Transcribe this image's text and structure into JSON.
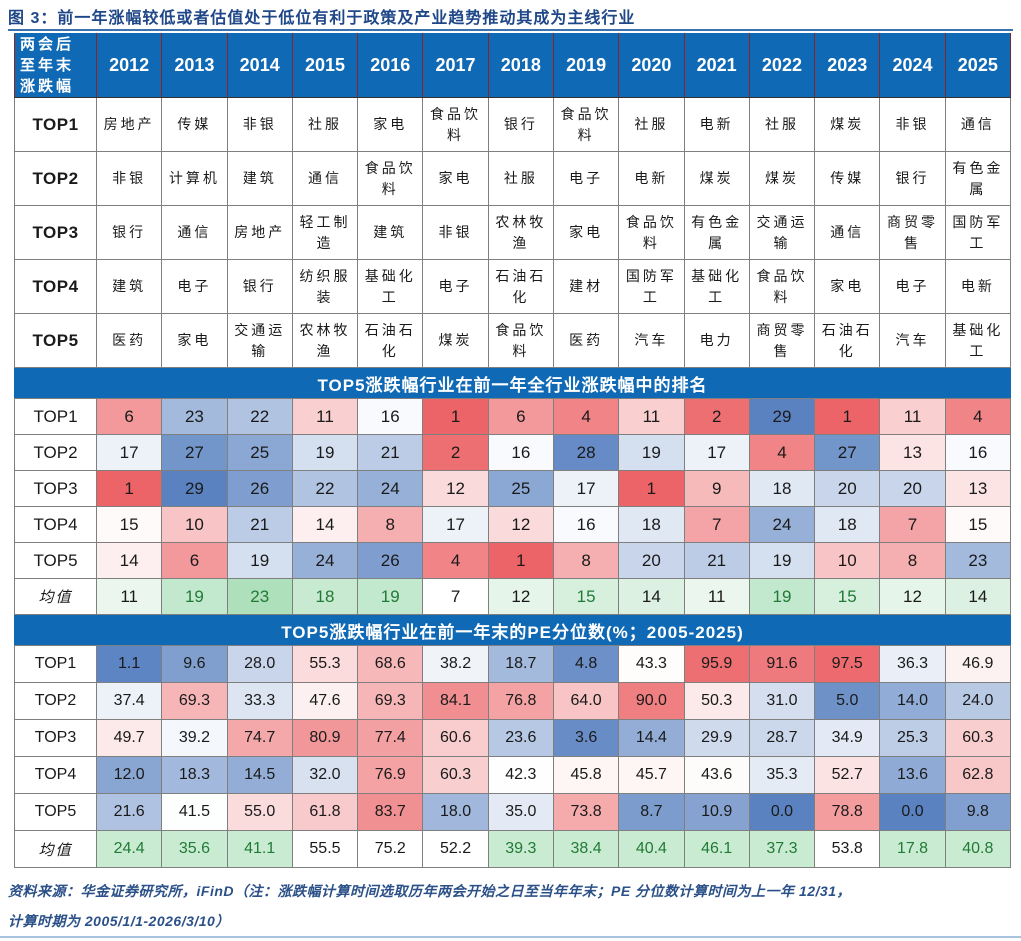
{
  "title": "图 3：前一年涨幅较低或者估值处于低位有利于政策及产业趋势推动其成为主线行业",
  "corner_label_lines": [
    "两会后",
    "至年末",
    "涨跌幅"
  ],
  "years": [
    "2012",
    "2013",
    "2014",
    "2015",
    "2016",
    "2017",
    "2018",
    "2019",
    "2020",
    "2021",
    "2022",
    "2023",
    "2024",
    "2025"
  ],
  "footer": {
    "line1": "资料来源：华金证券研究所，iFinD（注：涨跌幅计算时间选取历年两会开始之日至当年年末；PE 分位数计算时间为上一年 12/31，",
    "line2": "计算时期为 2005/1/1-2026/3/10）"
  },
  "colors": {
    "header_blue": "#0f69b4",
    "title_navy": "#1f4788",
    "footer_navy": "#2b5188",
    "hot_red": "#ec6467",
    "cool_blue": "#5a82c1",
    "mean_green_bg": "#aee0bc",
    "mean_green_bg_pe": "#c9ebd2",
    "mean_green_text": "#217a36",
    "header_grid_red": "#8b2525",
    "body_grid_gray": "#7f7f7f"
  },
  "chart_data": [
    {
      "type": "table",
      "name": "top5-industries-by-year",
      "title": "两会后至年末涨跌幅 TOP1-TOP5 行业",
      "columns": [
        "2012",
        "2013",
        "2014",
        "2015",
        "2016",
        "2017",
        "2018",
        "2019",
        "2020",
        "2021",
        "2022",
        "2023",
        "2024",
        "2025"
      ],
      "rows": [
        {
          "label": "TOP1",
          "cells": [
            "房地产",
            "传媒",
            "非银",
            "社服",
            "家电",
            "食品饮料",
            "银行",
            "食品饮料",
            "社服",
            "电新",
            "社服",
            "煤炭",
            "非银",
            "通信"
          ]
        },
        {
          "label": "TOP2",
          "cells": [
            "非银",
            "计算机",
            "建筑",
            "通信",
            "食品饮料",
            "家电",
            "社服",
            "电子",
            "电新",
            "煤炭",
            "煤炭",
            "传媒",
            "银行",
            "有色金属"
          ]
        },
        {
          "label": "TOP3",
          "cells": [
            "银行",
            "通信",
            "房地产",
            "轻工制造",
            "建筑",
            "非银",
            "农林牧渔",
            "家电",
            "食品饮料",
            "有色金属",
            "交通运输",
            "通信",
            "商贸零售",
            "国防军工"
          ]
        },
        {
          "label": "TOP4",
          "cells": [
            "建筑",
            "电子",
            "银行",
            "纺织服装",
            "基础化工",
            "电子",
            "石油石化",
            "建材",
            "国防军工",
            "基础化工",
            "食品饮料",
            "家电",
            "电子",
            "电新"
          ]
        },
        {
          "label": "TOP5",
          "cells": [
            "医药",
            "家电",
            "交通运输",
            "农林牧渔",
            "石油石化",
            "煤炭",
            "食品饮料",
            "医药",
            "汽车",
            "电力",
            "商贸零售",
            "石油石化",
            "汽车",
            "基础化工"
          ]
        }
      ]
    },
    {
      "type": "heatmap",
      "name": "rank-in-prior-year",
      "title": "TOP5涨跌幅行业在前一年全行业涨跌幅中的排名",
      "columns": [
        "2012",
        "2013",
        "2014",
        "2015",
        "2016",
        "2017",
        "2018",
        "2019",
        "2020",
        "2021",
        "2022",
        "2023",
        "2024",
        "2025"
      ],
      "color_scale": {
        "low": 1,
        "mid": 15.5,
        "high": 29,
        "low_color": "#ec6467",
        "mid_color": "#ffffff",
        "high_color": "#5a82c1"
      },
      "rows": [
        {
          "label": "TOP1",
          "values": [
            6,
            23,
            22,
            11,
            16,
            1,
            6,
            4,
            11,
            2,
            29,
            1,
            11,
            4
          ]
        },
        {
          "label": "TOP2",
          "values": [
            17,
            27,
            25,
            19,
            21,
            2,
            16,
            28,
            19,
            17,
            4,
            27,
            13,
            16
          ]
        },
        {
          "label": "TOP3",
          "values": [
            1,
            29,
            26,
            22,
            24,
            12,
            25,
            17,
            1,
            9,
            18,
            20,
            20,
            13
          ]
        },
        {
          "label": "TOP4",
          "values": [
            15,
            10,
            21,
            14,
            8,
            17,
            12,
            16,
            18,
            7,
            24,
            18,
            7,
            15
          ]
        },
        {
          "label": "TOP5",
          "values": [
            14,
            6,
            19,
            24,
            26,
            4,
            1,
            8,
            20,
            21,
            19,
            10,
            8,
            23
          ]
        },
        {
          "label": "均值",
          "values": [
            11,
            19,
            23,
            18,
            19,
            7,
            12,
            15,
            14,
            11,
            19,
            15,
            12,
            14
          ],
          "is_mean": true
        }
      ]
    },
    {
      "type": "heatmap",
      "name": "pe-percentile-prior-year-end",
      "title": "TOP5涨跌幅行业在前一年末的PE分位数(%；2005-2025)",
      "columns": [
        "2012",
        "2013",
        "2014",
        "2015",
        "2016",
        "2017",
        "2018",
        "2019",
        "2020",
        "2021",
        "2022",
        "2023",
        "2024",
        "2025"
      ],
      "color_scale": {
        "low": 0,
        "mid": 42,
        "high": 100,
        "low_color": "#5a82c1",
        "mid_color": "#ffffff",
        "high_color": "#ec6467"
      },
      "rows": [
        {
          "label": "TOP1",
          "values": [
            "1.1",
            "9.6",
            "28.0",
            "55.3",
            "68.6",
            "38.2",
            "18.7",
            "4.8",
            "43.3",
            "95.9",
            "91.6",
            "97.5",
            "36.3",
            "46.9"
          ]
        },
        {
          "label": "TOP2",
          "values": [
            "37.4",
            "69.3",
            "33.3",
            "47.6",
            "69.3",
            "84.1",
            "76.8",
            "64.0",
            "90.0",
            "50.3",
            "31.0",
            "5.0",
            "14.0",
            "24.0"
          ]
        },
        {
          "label": "TOP3",
          "values": [
            "49.7",
            "39.2",
            "74.7",
            "80.9",
            "77.4",
            "60.6",
            "23.6",
            "3.6",
            "14.4",
            "29.9",
            "28.7",
            "34.9",
            "25.3",
            "60.3"
          ]
        },
        {
          "label": "TOP4",
          "values": [
            "12.0",
            "18.3",
            "14.5",
            "32.0",
            "76.9",
            "60.3",
            "42.3",
            "45.8",
            "45.7",
            "43.6",
            "35.3",
            "52.7",
            "13.6",
            "62.8"
          ]
        },
        {
          "label": "TOP5",
          "values": [
            "21.6",
            "41.5",
            "55.0",
            "61.8",
            "83.7",
            "18.0",
            "35.0",
            "73.8",
            "8.7",
            "10.9",
            "0.0",
            "78.8",
            "0.0",
            "9.8"
          ]
        },
        {
          "label": "均值",
          "values": [
            "24.4",
            "35.6",
            "41.1",
            "55.5",
            "75.2",
            "52.2",
            "39.3",
            "38.4",
            "40.4",
            "46.1",
            "37.3",
            "53.8",
            "17.8",
            "40.8"
          ],
          "is_mean": true
        }
      ]
    }
  ]
}
